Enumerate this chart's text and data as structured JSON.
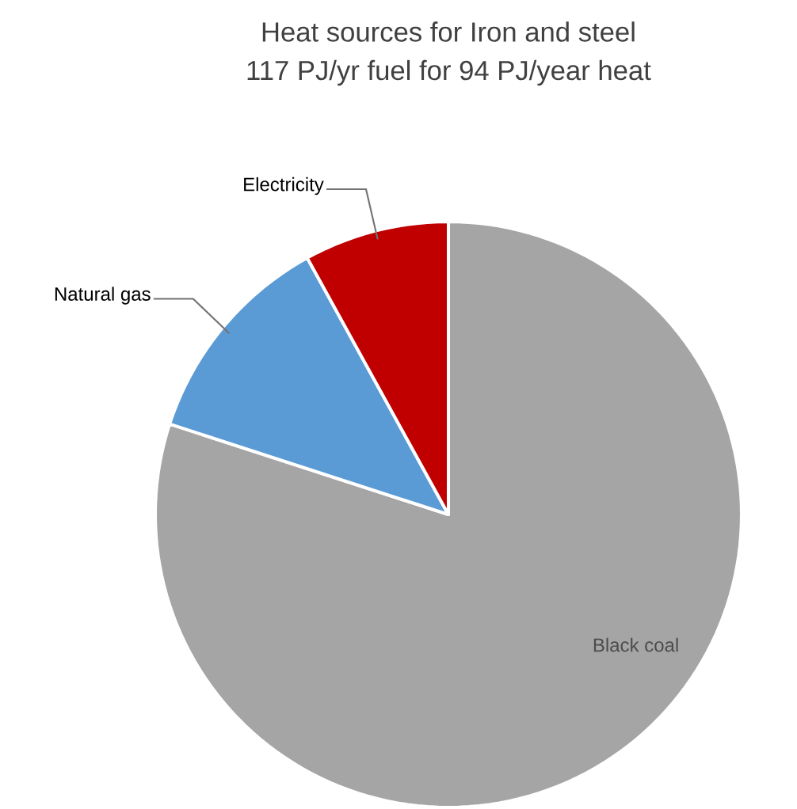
{
  "chart_data": {
    "type": "pie",
    "title": "Heat sources for Iron and steel",
    "subtitle": "117 PJ/yr fuel for 94 PJ/year heat",
    "categories": [
      "Black coal",
      "Natural gas",
      "Electricity"
    ],
    "values": [
      80,
      12,
      8
    ],
    "colors": [
      "#a5a5a5",
      "#5b9bd5",
      "#c00000"
    ]
  }
}
